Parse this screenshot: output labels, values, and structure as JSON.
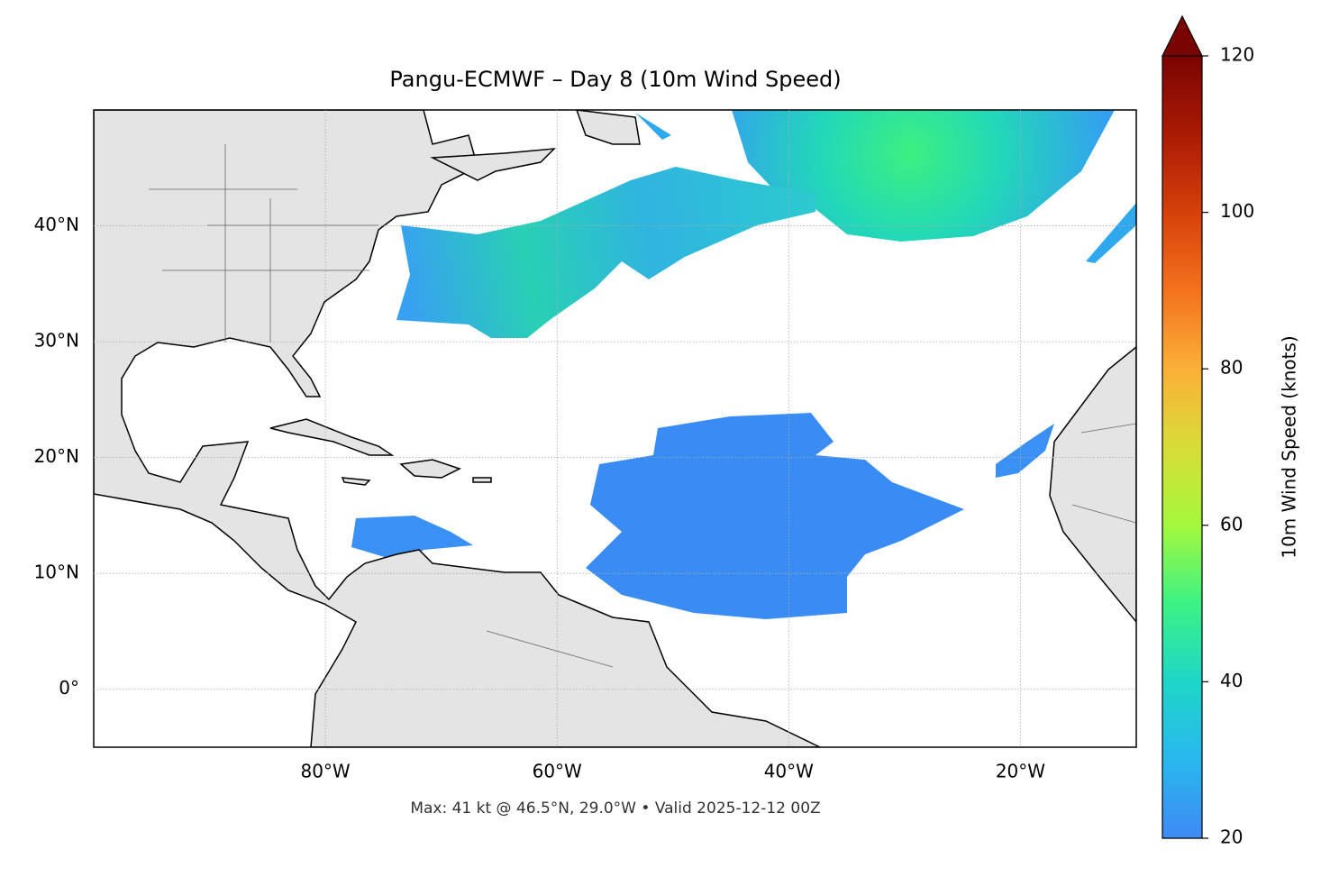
{
  "chart_data": {
    "type": "map",
    "title": "Pangu-ECMWF – Day 8 (10m Wind Speed)",
    "footer": "Max: 41 kt @ 46.5°N, 29.0°W • Valid 2025-12-12 00Z",
    "xlim": [
      -100,
      -10
    ],
    "ylim": [
      -5,
      50
    ],
    "xticks": [
      {
        "value": -80,
        "label": "80°W"
      },
      {
        "value": -60,
        "label": "60°W"
      },
      {
        "value": -40,
        "label": "40°W"
      },
      {
        "value": -20,
        "label": "20°W"
      }
    ],
    "yticks": [
      {
        "value": 0,
        "label": "0°"
      },
      {
        "value": 10,
        "label": "10°N"
      },
      {
        "value": 20,
        "label": "20°N"
      },
      {
        "value": 30,
        "label": "30°N"
      },
      {
        "value": 40,
        "label": "40°N"
      }
    ],
    "grid": true,
    "colorbar": {
      "label": "10m Wind Speed (knots)",
      "clim": [
        20,
        120
      ],
      "ticks": [
        20,
        40,
        60,
        80,
        100,
        120
      ]
    }
  }
}
